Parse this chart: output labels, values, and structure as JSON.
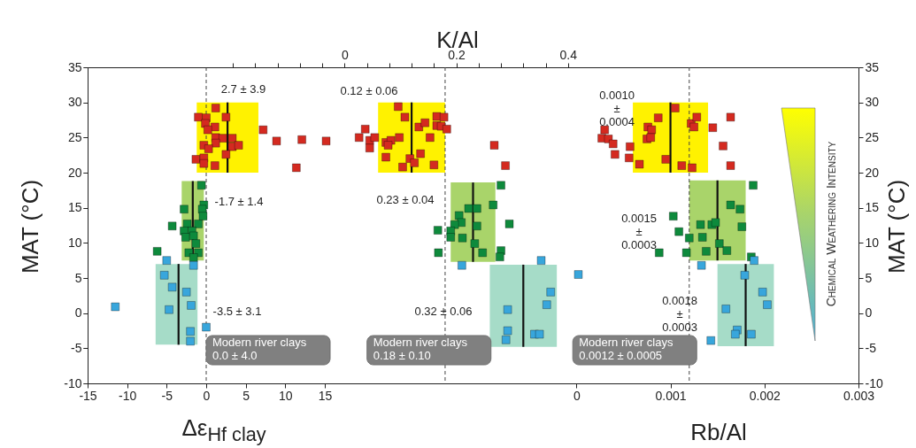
{
  "chart_data": [
    {
      "type": "scatter",
      "xlabel": "Δε$_{Hf clay}$",
      "ylabel": "MAT (°C)",
      "xlim": [
        -15,
        82.5
      ],
      "xticks": [
        -15,
        -10,
        -5,
        0,
        5,
        10,
        15
      ],
      "ylim": [
        -10,
        35
      ],
      "yticks": [
        -10,
        -5,
        0,
        5,
        10,
        15,
        20,
        25,
        30,
        35
      ],
      "series": [
        {
          "type": "line",
          "color": "#fff200",
          "x": [
            -1.2,
            6.6
          ],
          "values": [
            null,
            null
          ],
          "upper": [
            30,
            30
          ],
          "lower": [
            20,
            20
          ]
        },
        {
          "type": "line",
          "color": "#a9d46a",
          "x": [
            -3.1,
            -0.3
          ],
          "values": [
            null,
            null
          ],
          "upper": [
            18.8,
            18.8
          ],
          "lower": [
            7.5,
            7.5
          ]
        },
        {
          "type": "line",
          "color": "#a6dcc8",
          "x": [
            -6.4,
            -1.1
          ],
          "values": [
            null,
            null
          ],
          "upper": [
            7,
            7
          ],
          "lower": [
            -4.5,
            -4.5
          ]
        },
        {
          "type": "line",
          "color": "#111111",
          "x": [
            2.7,
            2.7
          ],
          "values": [
            20,
            30
          ]
        },
        {
          "type": "line",
          "color": "#111111",
          "x": [
            -1.7,
            -1.7
          ],
          "values": [
            7.5,
            18.8
          ]
        },
        {
          "type": "line",
          "color": "#111111",
          "x": [
            -3.5,
            -3.5
          ],
          "values": [
            -4.5,
            7
          ]
        },
        {
          "marker": "square",
          "color": "#d42a20",
          "x": [
            1.2,
            -1.0,
            0.0,
            2.5,
            -0.1,
            1.1,
            0.2,
            7.2,
            8.9,
            11.4,
            12.1,
            1.2,
            2.1,
            3.3,
            1.2,
            -0.3,
            3.3,
            4.1,
            0.3,
            2.5,
            -1.3,
            -0.3,
            -0.3,
            1.1
          ],
          "values": [
            29.2,
            27.9,
            27.8,
            27.9,
            27.0,
            26.5,
            26.1,
            26.1,
            24.5,
            20.7,
            24.7,
            25.0,
            24.9,
            24.9,
            24.2,
            23.9,
            23.7,
            23.9,
            23.4,
            22.6,
            21.9,
            22.1,
            21.3,
            21.0
          ]
        },
        {
          "marker": "square",
          "color": "#0e8a3c",
          "x": [
            -0.6,
            -2.8,
            -0.3,
            -0.5,
            -0.4,
            -4.3,
            -2.4,
            -1.0,
            -2.8,
            -1.8,
            -2.6,
            -1.6,
            -1.3,
            -6.2,
            -2.2,
            -1.0,
            -1.6
          ],
          "values": [
            18.2,
            14.8,
            15.4,
            14.8,
            13.8,
            12.4,
            12.7,
            12.7,
            11.7,
            11.7,
            10.8,
            11.0,
            9.9,
            8.8,
            8.6,
            8.6,
            7.9
          ]
        },
        {
          "marker": "square",
          "color": "#38a6dc",
          "x": [
            -5.0,
            -1.6,
            -5.3,
            -4.3,
            -2.5,
            -11.5,
            -4.7,
            -1.9,
            0.0,
            -2.0,
            -2.0
          ],
          "values": [
            7.5,
            6.8,
            5.4,
            3.7,
            3.0,
            0.9,
            0.5,
            1.1,
            -2.0,
            -2.6,
            -4.0
          ]
        }
      ],
      "ref_lines": [
        {
          "axis": "x",
          "value": 0,
          "label": "Modern river clays\n0.0 ± 4.0",
          "line_style": "dashed",
          "color": "#444444"
        }
      ],
      "annotations": [
        "2.7 ± 3.9",
        "-1.7 ± 1.4",
        "-3.5 ± 3.1"
      ]
    },
    {
      "type": "scatter",
      "xlabel": "K/Al",
      "xlim": [
        -0.46,
        0.92
      ],
      "xticks": [
        {
          "value": -0.2,
          "label": null
        },
        {
          "value": -0.16,
          "label": null
        },
        {
          "value": -0.12,
          "label": null
        },
        {
          "value": -0.08,
          "label": null
        },
        {
          "value": -0.04,
          "label": null
        },
        0,
        {
          "value": 0.04,
          "label": null
        },
        {
          "value": 0.08,
          "label": null
        },
        {
          "value": 0.12,
          "label": null
        },
        {
          "value": 0.16,
          "label": null
        },
        0.2,
        {
          "value": 0.24,
          "label": null
        },
        {
          "value": 0.28,
          "label": null
        },
        {
          "value": 0.32,
          "label": null
        },
        {
          "value": 0.36,
          "label": null
        },
        0.4
      ],
      "ylim": [
        -10,
        35
      ],
      "yticks": [
        -10,
        -5,
        0,
        5,
        10,
        15,
        20,
        25,
        30,
        35
      ],
      "tick_labels": "x",
      "series": [
        {
          "type": "line",
          "color": "#fff200",
          "x": [
            0.06,
            0.18
          ],
          "values": [
            null,
            null
          ],
          "upper": [
            30,
            30
          ],
          "lower": [
            20,
            20
          ]
        },
        {
          "type": "line",
          "color": "#a9d46a",
          "x": [
            0.19,
            0.27
          ],
          "values": [
            null,
            null
          ],
          "upper": [
            18.6,
            18.6
          ],
          "lower": [
            7.3,
            7.3
          ]
        },
        {
          "type": "line",
          "color": "#a6dcc8",
          "x": [
            0.26,
            0.38
          ],
          "values": [
            null,
            null
          ],
          "upper": [
            6.9,
            6.9
          ],
          "lower": [
            -4.8,
            -4.8
          ]
        },
        {
          "type": "line",
          "color": "#111111",
          "x": [
            0.12,
            0.12
          ],
          "values": [
            20,
            30
          ]
        },
        {
          "type": "line",
          "color": "#111111",
          "x": [
            0.23,
            0.23
          ],
          "values": [
            7.3,
            18.6
          ]
        },
        {
          "type": "line",
          "color": "#111111",
          "x": [
            0.32,
            0.32
          ],
          "values": [
            -4.8,
            6.9
          ]
        },
        {
          "marker": "square",
          "color": "#d42a20",
          "x": [
            -0.033,
            0.026,
            0.037,
            0.045,
            0.054,
            0.045,
            0.074,
            0.083,
            0.078,
            0.098,
            0.096,
            0.108,
            0.074,
            0.104,
            0.117,
            0.125,
            0.136,
            0.133,
            0.144,
            0.153,
            0.16,
            0.165,
            0.178,
            0.165,
            0.173,
            0.183,
            0.268,
            0.288
          ],
          "values": [
            24.5,
            25.0,
            26.2,
            24.6,
            25.0,
            23.5,
            24.3,
            24.6,
            23.9,
            25.0,
            29.4,
            27.9,
            22.2,
            20.8,
            22.0,
            21.4,
            22.7,
            26.5,
            27.1,
            25.0,
            21.1,
            28.0,
            27.9,
            26.7,
            26.6,
            26.2,
            23.9,
            21.0
          ]
        },
        {
          "marker": "square",
          "color": "#0e8a3c",
          "x": [
            0.28,
            0.266,
            0.222,
            0.237,
            0.205,
            0.209,
            0.197,
            0.237,
            0.295,
            0.167,
            0.19,
            0.19,
            0.211,
            0.233,
            0.168,
            0.247,
            0.28,
            0.278
          ],
          "values": [
            18.2,
            15.4,
            14.9,
            14.9,
            13.9,
            12.9,
            12.6,
            12.4,
            12.7,
            11.8,
            11.7,
            10.8,
            10.7,
            9.9,
            8.6,
            8.6,
            8.9,
            8.0
          ]
        },
        {
          "marker": "square",
          "color": "#38a6dc",
          "x": [
            0.21,
            0.352,
            0.369,
            0.362,
            0.292,
            0.292,
            0.289,
            0.34,
            0.349
          ],
          "values": [
            6.8,
            7.5,
            3.0,
            1.2,
            0.5,
            -2.5,
            -3.8,
            -3.0,
            -3.0
          ]
        }
      ],
      "ref_lines": [
        {
          "axis": "x",
          "value": 0.18,
          "label": "Modern river clays\n0.18 ± 0.10",
          "line_style": "dashed",
          "color": "#444444"
        }
      ],
      "annotations": [
        "0.12 ± 0.06",
        "0.23 ± 0.04",
        "0.32 ± 0.06"
      ]
    },
    {
      "type": "scatter",
      "xlabel": "Rb/Al",
      "ylabel": "MAT (°C)",
      "xlim": [
        -0.0052,
        0.003
      ],
      "xticks": [
        0,
        0.001,
        0.002,
        0.003
      ],
      "ylim": [
        -10,
        35
      ],
      "yticks": [
        -10,
        -5,
        0,
        5,
        10,
        15,
        20,
        25,
        30,
        35
      ],
      "series": [
        {
          "type": "line",
          "color": "#fff200",
          "x": [
            0.0006,
            0.0014
          ],
          "values": [
            null,
            null
          ],
          "upper": [
            30,
            30
          ],
          "lower": [
            20,
            20
          ]
        },
        {
          "type": "line",
          "color": "#a9d46a",
          "x": [
            0.0012,
            0.0018
          ],
          "values": [
            null,
            null
          ],
          "upper": [
            18.9,
            18.9
          ],
          "lower": [
            7.5,
            7.5
          ]
        },
        {
          "type": "line",
          "color": "#a6dcc8",
          "x": [
            0.0015,
            0.0021
          ],
          "values": [
            null,
            null
          ],
          "upper": [
            7,
            7
          ],
          "lower": [
            -4.7,
            -4.7
          ]
        },
        {
          "type": "line",
          "color": "#111111",
          "x": [
            0.001,
            0.001
          ],
          "values": [
            20,
            30
          ]
        },
        {
          "type": "line",
          "color": "#111111",
          "x": [
            0.0015,
            0.0015
          ],
          "values": [
            7.5,
            18.9
          ]
        },
        {
          "type": "line",
          "color": "#111111",
          "x": [
            0.0018,
            0.0018
          ],
          "values": [
            -4.7,
            7
          ]
        },
        {
          "marker": "square",
          "color": "#d42a20",
          "x": [
            0.0003,
            0.00027,
            0.00034,
            0.00039,
            0.00041,
            0.00057,
            0.00056,
            0.00067,
            0.00076,
            0.0008,
            0.00075,
            0.00079,
            0.00087,
            0.00095,
            0.00105,
            0.00122,
            0.00128,
            0.00125,
            0.00112,
            0.00123,
            0.00145,
            0.00164,
            0.00156,
            0.00164
          ],
          "values": [
            26.1,
            24.9,
            24.8,
            24.1,
            22.6,
            23.7,
            22.1,
            21.2,
            26.5,
            26.1,
            24.8,
            25.0,
            27.8,
            21.9,
            29.2,
            27.0,
            27.9,
            26.5,
            21.0,
            20.7,
            26.4,
            27.9,
            23.8,
            21.0
          ]
        },
        {
          "marker": "square",
          "color": "#0e8a3c",
          "x": [
            0.00188,
            0.00164,
            0.00174,
            0.00103,
            0.00176,
            0.00132,
            0.00144,
            0.00148,
            0.00109,
            0.0012,
            0.00134,
            0.00152,
            0.0016,
            0.00088,
            0.00117,
            0.00138,
            0.00186
          ],
          "values": [
            18.2,
            15.4,
            14.8,
            13.8,
            12.3,
            12.6,
            12.6,
            12.9,
            11.6,
            10.7,
            10.8,
            9.9,
            8.9,
            8.6,
            8.6,
            8.8,
            8.0
          ]
        },
        {
          "marker": "square",
          "color": "#38a6dc",
          "x": [
            2e-05,
            0.00133,
            0.00189,
            0.00179,
            0.00198,
            0.00203,
            0.00159,
            0.00171,
            0.00169,
            0.00186,
            0.00143
          ],
          "values": [
            5.5,
            6.8,
            7.5,
            5.4,
            3.0,
            1.2,
            0.6,
            -2.4,
            -3.0,
            -3.0,
            -3.9
          ]
        }
      ],
      "ref_lines": [
        {
          "axis": "x",
          "value": 0.0012,
          "label": "Modern river clays\n0.0012 ± 0.0005",
          "line_style": "dashed",
          "color": "#444444"
        }
      ],
      "annotations": [
        "0.0010\n±\n0.0004",
        "0.0015\n±\n0.0003",
        "0.0018\n±\n0.0003",
        "Chemical Weathering Intensity"
      ]
    }
  ]
}
